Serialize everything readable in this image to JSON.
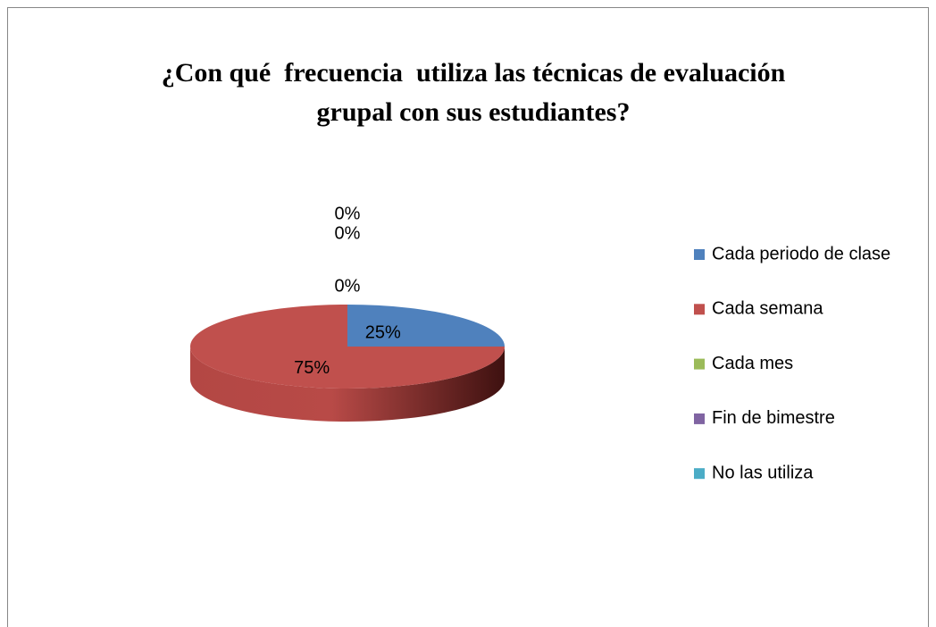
{
  "chart_data": {
    "type": "pie",
    "title": "¿Con qué  frecuencia  utiliza las técnicas de evaluación grupal con sus estudiantes?",
    "categories": [
      "Cada periodo de clase",
      "Cada semana",
      "Cada mes",
      "Fin de bimestre",
      "No las utiliza"
    ],
    "values": [
      25,
      75,
      0,
      0,
      0
    ],
    "value_labels": [
      "25%",
      "75%",
      "0%",
      "0%",
      "0%"
    ],
    "colors": [
      "#4f81bd",
      "#c0504d",
      "#9bbb59",
      "#8064a2",
      "#4bacc6"
    ],
    "legend": "right"
  }
}
